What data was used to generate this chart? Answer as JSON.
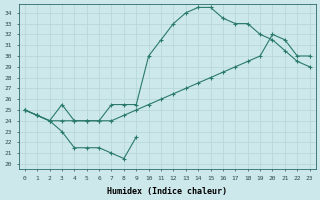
{
  "xlabel": "Humidex (Indice chaleur)",
  "background_color": "#cde8ea",
  "grid_color": "#b8d8da",
  "line_color": "#2a7a6a",
  "xlim": [
    -0.5,
    23.5
  ],
  "ylim": [
    19.5,
    34.8
  ],
  "yticks": [
    20,
    21,
    22,
    23,
    24,
    25,
    26,
    27,
    28,
    29,
    30,
    31,
    32,
    33,
    34
  ],
  "xticks": [
    0,
    1,
    2,
    3,
    4,
    5,
    6,
    7,
    8,
    9,
    10,
    11,
    12,
    13,
    14,
    15,
    16,
    17,
    18,
    19,
    20,
    21,
    22,
    23
  ],
  "series": [
    {
      "x": [
        0,
        1,
        2,
        3,
        4,
        5,
        6,
        7,
        8,
        9
      ],
      "y": [
        25.0,
        24.5,
        24.0,
        23.0,
        21.5,
        21.5,
        21.5,
        21.0,
        20.5,
        22.5
      ]
    },
    {
      "x": [
        0,
        1,
        2,
        3,
        4,
        5,
        6,
        7,
        8,
        9,
        10,
        11,
        12,
        13,
        14,
        15,
        16,
        17,
        18,
        19,
        20,
        21,
        22,
        23
      ],
      "y": [
        25.0,
        24.5,
        24.0,
        25.5,
        24.0,
        24.0,
        24.0,
        25.5,
        25.5,
        25.5,
        30.0,
        31.5,
        33.0,
        34.0,
        34.5,
        34.5,
        33.5,
        33.0,
        33.0,
        32.0,
        31.5,
        30.5,
        29.5,
        29.0
      ]
    },
    {
      "x": [
        0,
        1,
        2,
        3,
        4,
        5,
        6,
        7,
        8,
        9,
        10,
        11,
        12,
        13,
        14,
        15,
        16,
        17,
        18,
        19,
        20,
        21,
        22,
        23
      ],
      "y": [
        25.0,
        24.5,
        24.0,
        24.0,
        24.0,
        24.0,
        24.0,
        24.0,
        24.5,
        25.0,
        25.5,
        26.0,
        26.5,
        27.0,
        27.5,
        28.0,
        28.5,
        29.0,
        29.5,
        30.0,
        32.0,
        31.5,
        30.0,
        30.0
      ]
    }
  ]
}
